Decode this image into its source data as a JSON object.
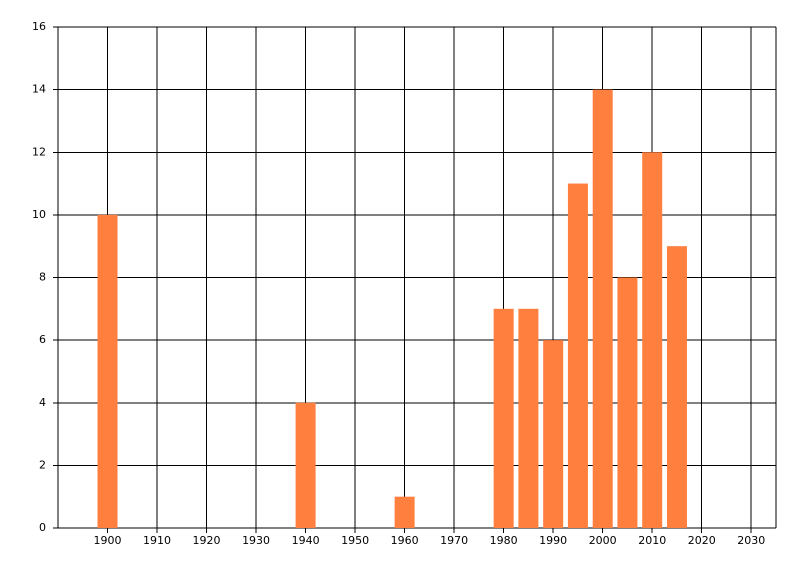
{
  "chart_data": {
    "type": "bar",
    "x": [
      1900,
      1940,
      1960,
      1980,
      1985,
      1990,
      1995,
      2000,
      2005,
      2010,
      2015
    ],
    "values": [
      10,
      4,
      1,
      7,
      7,
      6,
      11,
      14,
      8,
      12,
      9
    ],
    "color": "#ff7f3f",
    "xlim": [
      1890,
      2035
    ],
    "xticks": [
      1900,
      1910,
      1920,
      1930,
      1940,
      1950,
      1960,
      1970,
      1980,
      1990,
      2000,
      2010,
      2020,
      2030
    ],
    "ylim": [
      0,
      16
    ],
    "yticks": [
      0,
      2,
      4,
      6,
      8,
      10,
      12,
      14,
      16
    ],
    "grid": true
  }
}
